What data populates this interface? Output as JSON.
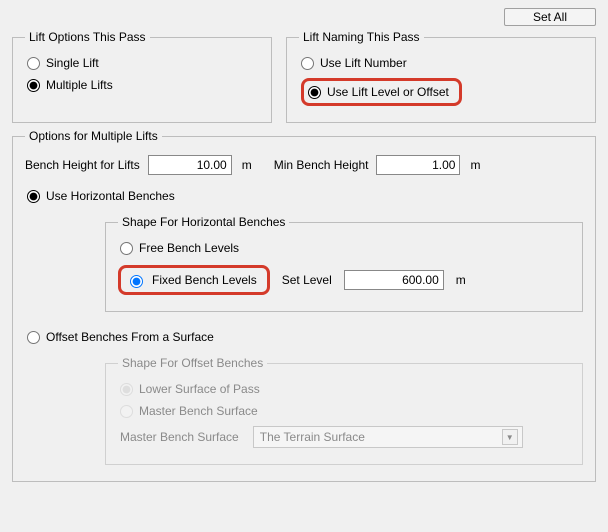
{
  "top": {
    "set_all": "Set All"
  },
  "lift_options": {
    "legend": "Lift Options This Pass",
    "single": "Single Lift",
    "multiple": "Multiple Lifts"
  },
  "lift_naming": {
    "legend": "Lift Naming This Pass",
    "use_number": "Use Lift Number",
    "use_level": "Use Lift Level or Offset"
  },
  "multiple": {
    "legend": "Options for Multiple Lifts",
    "bench_height_label": "Bench Height for Lifts",
    "bench_height_value": "10.00",
    "min_bench_label": "Min Bench Height",
    "min_bench_value": "1.00",
    "unit": "m",
    "use_horizontal": "Use Horizontal Benches",
    "shape_hb": {
      "legend": "Shape For Horizontal Benches",
      "free": "Free Bench Levels",
      "fixed": "Fixed Bench Levels",
      "set_level_label": "Set Level",
      "set_level_value": "600.00"
    },
    "offset_from_surface": "Offset Benches From a Surface",
    "shape_ob": {
      "legend": "Shape For Offset Benches",
      "lower": "Lower Surface of Pass",
      "master": "Master Bench Surface",
      "master_label": "Master Bench Surface",
      "master_select": "The Terrain Surface"
    }
  },
  "style": {
    "highlight_border": "#d43a2a",
    "panel_bg": "#f0f0f0"
  }
}
